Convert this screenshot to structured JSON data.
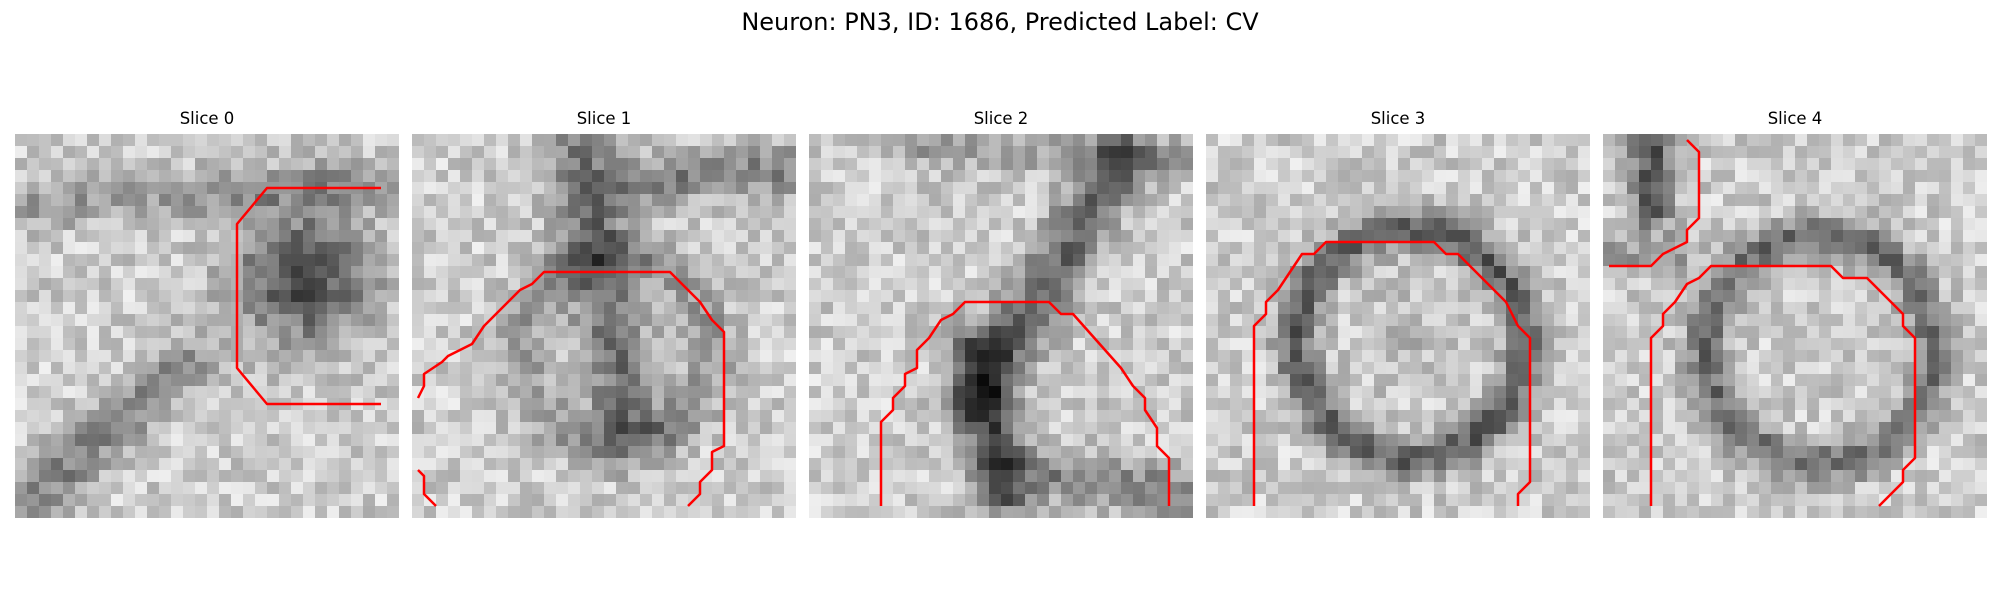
{
  "figure": {
    "title": "Neuron: PN3, ID: 1686, Predicted Label: CV"
  },
  "colors": {
    "contour": "#ff0000"
  },
  "panels": [
    {
      "title": "Slice 0",
      "image": "grayscale EM slice with dark circular structure at right, red contour"
    },
    {
      "title": "Slice 1",
      "image": "grayscale EM slice with dark membrane band, red contour"
    },
    {
      "title": "Slice 2",
      "image": "grayscale EM slice with dark diagonal membrane, red contour"
    },
    {
      "title": "Slice 3",
      "image": "grayscale EM slice with ring-shaped cell body, red contour"
    },
    {
      "title": "Slice 4",
      "image": "grayscale EM slice with ring-shaped cell body, red contour"
    }
  ]
}
